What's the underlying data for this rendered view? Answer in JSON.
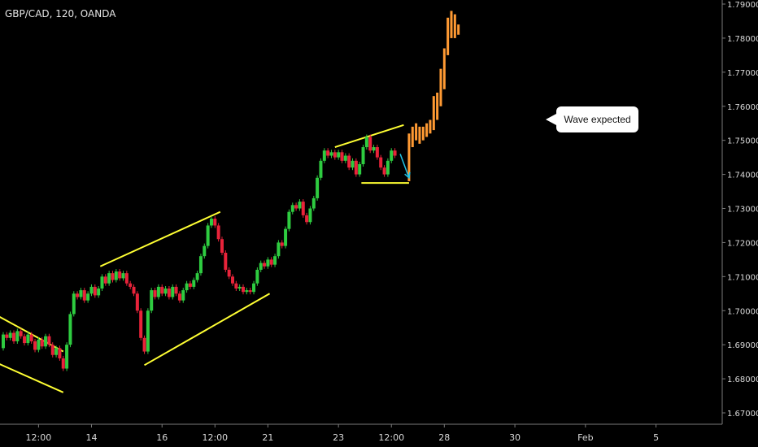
{
  "chart": {
    "symbol": "GBP/CAD, 120, OANDA"
  },
  "colors": {
    "background": "#000000",
    "up_candle": "#2ecc40",
    "down_candle": "#e8233a",
    "projection": "#ff9a33",
    "trendline": "#ffff33",
    "arrow": "#20c4e6",
    "axis_text": "#d9d9d9",
    "axis_line": "#7a7a7a",
    "callout_bg": "#ffffff"
  },
  "chart_data": {
    "type": "candlestick",
    "grid": false,
    "price_scale": "right",
    "ylim": [
      1.665,
      1.792
    ],
    "xlim": [
      0,
      78
    ],
    "x_ticks": [
      {
        "label": "12:00",
        "x": 4
      },
      {
        "label": "14",
        "x": 10
      },
      {
        "label": "16",
        "x": 18
      },
      {
        "label": "12:00",
        "x": 24
      },
      {
        "label": "21",
        "x": 30
      },
      {
        "label": "23",
        "x": 38
      },
      {
        "label": "12:00",
        "x": 44
      },
      {
        "label": "28",
        "x": 50
      },
      {
        "label": "30",
        "x": 58
      },
      {
        "label": "Feb",
        "x": 66
      },
      {
        "label": "5",
        "x": 74
      }
    ],
    "y_ticks": [
      "1.67000",
      "1.68000",
      "1.69000",
      "1.70000",
      "1.71000",
      "1.72000",
      "1.73000",
      "1.74000",
      "1.75000",
      "1.76000",
      "1.77000",
      "1.78000",
      "1.79000"
    ],
    "candles": [
      [
        0.0,
        1.689,
        1.693
      ],
      [
        0.4,
        1.693,
        1.692
      ],
      [
        0.8,
        1.692,
        1.6935
      ],
      [
        1.2,
        1.6935,
        1.691
      ],
      [
        1.6,
        1.691,
        1.694
      ],
      [
        2.0,
        1.694,
        1.6925
      ],
      [
        2.4,
        1.6925,
        1.6905
      ],
      [
        2.8,
        1.6905,
        1.693
      ],
      [
        3.2,
        1.693,
        1.691
      ],
      [
        3.6,
        1.691,
        1.6885
      ],
      [
        4.0,
        1.6885,
        1.6915
      ],
      [
        4.4,
        1.6915,
        1.6895
      ],
      [
        4.8,
        1.6895,
        1.6925
      ],
      [
        5.2,
        1.6925,
        1.69
      ],
      [
        5.6,
        1.69,
        1.687
      ],
      [
        6.0,
        1.687,
        1.689
      ],
      [
        6.4,
        1.689,
        1.686
      ],
      [
        6.8,
        1.686,
        1.683
      ],
      [
        7.2,
        1.683,
        1.69
      ],
      [
        7.6,
        1.69,
        1.699
      ],
      [
        8.0,
        1.699,
        1.705
      ],
      [
        8.4,
        1.705,
        1.704
      ],
      [
        8.8,
        1.704,
        1.706
      ],
      [
        9.2,
        1.706,
        1.703
      ],
      [
        9.6,
        1.703,
        1.705
      ],
      [
        10.0,
        1.705,
        1.707
      ],
      [
        10.4,
        1.707,
        1.7045
      ],
      [
        10.8,
        1.7045,
        1.7065
      ],
      [
        11.2,
        1.7065,
        1.71
      ],
      [
        11.6,
        1.71,
        1.708
      ],
      [
        12.0,
        1.708,
        1.711
      ],
      [
        12.4,
        1.711,
        1.709
      ],
      [
        12.8,
        1.709,
        1.7115
      ],
      [
        13.2,
        1.7115,
        1.7095
      ],
      [
        13.6,
        1.7095,
        1.711
      ],
      [
        14.0,
        1.711,
        1.708
      ],
      [
        14.4,
        1.708,
        1.707
      ],
      [
        14.8,
        1.707,
        1.705
      ],
      [
        15.2,
        1.705,
        1.7
      ],
      [
        15.6,
        1.7,
        1.692
      ],
      [
        16.0,
        1.692,
        1.688
      ],
      [
        16.4,
        1.688,
        1.7
      ],
      [
        16.8,
        1.7,
        1.706
      ],
      [
        17.2,
        1.706,
        1.704
      ],
      [
        17.6,
        1.704,
        1.707
      ],
      [
        18.0,
        1.707,
        1.705
      ],
      [
        18.4,
        1.705,
        1.7065
      ],
      [
        18.8,
        1.7065,
        1.704
      ],
      [
        19.2,
        1.704,
        1.707
      ],
      [
        19.6,
        1.707,
        1.705
      ],
      [
        20.0,
        1.705,
        1.703
      ],
      [
        20.4,
        1.703,
        1.706
      ],
      [
        20.8,
        1.706,
        1.708
      ],
      [
        21.2,
        1.708,
        1.707
      ],
      [
        21.6,
        1.707,
        1.709
      ],
      [
        22.0,
        1.709,
        1.711
      ],
      [
        22.4,
        1.711,
        1.716
      ],
      [
        22.8,
        1.716,
        1.719
      ],
      [
        23.2,
        1.719,
        1.725
      ],
      [
        23.6,
        1.725,
        1.727
      ],
      [
        24.0,
        1.727,
        1.725
      ],
      [
        24.4,
        1.725,
        1.721
      ],
      [
        24.8,
        1.721,
        1.717
      ],
      [
        25.2,
        1.717,
        1.712
      ],
      [
        25.6,
        1.712,
        1.71
      ],
      [
        26.0,
        1.71,
        1.708
      ],
      [
        26.4,
        1.708,
        1.7065
      ],
      [
        26.8,
        1.7065,
        1.707
      ],
      [
        27.2,
        1.707,
        1.7055
      ],
      [
        27.6,
        1.7055,
        1.706
      ],
      [
        28.0,
        1.706,
        1.7055
      ],
      [
        28.4,
        1.7055,
        1.708
      ],
      [
        28.8,
        1.708,
        1.712
      ],
      [
        29.2,
        1.712,
        1.714
      ],
      [
        29.6,
        1.714,
        1.713
      ],
      [
        30.0,
        1.713,
        1.715
      ],
      [
        30.4,
        1.715,
        1.7135
      ],
      [
        30.8,
        1.7135,
        1.716
      ],
      [
        31.2,
        1.716,
        1.72
      ],
      [
        31.6,
        1.72,
        1.719
      ],
      [
        32.0,
        1.719,
        1.724
      ],
      [
        32.4,
        1.724,
        1.729
      ],
      [
        32.8,
        1.729,
        1.731
      ],
      [
        33.2,
        1.731,
        1.73
      ],
      [
        33.6,
        1.73,
        1.732
      ],
      [
        34.0,
        1.732,
        1.728
      ],
      [
        34.4,
        1.728,
        1.726
      ],
      [
        34.8,
        1.726,
        1.73
      ],
      [
        35.2,
        1.73,
        1.733
      ],
      [
        35.6,
        1.733,
        1.739
      ],
      [
        36.0,
        1.739,
        1.744
      ],
      [
        36.4,
        1.744,
        1.747
      ],
      [
        36.8,
        1.747,
        1.7455
      ],
      [
        37.2,
        1.7455,
        1.7465
      ],
      [
        37.6,
        1.7465,
        1.745
      ],
      [
        38.0,
        1.745,
        1.7465
      ],
      [
        38.4,
        1.7465,
        1.744
      ],
      [
        38.8,
        1.744,
        1.7455
      ],
      [
        39.2,
        1.7455,
        1.742
      ],
      [
        39.6,
        1.742,
        1.744
      ],
      [
        40.0,
        1.744,
        1.74
      ],
      [
        40.4,
        1.74,
        1.743
      ],
      [
        40.8,
        1.743,
        1.748
      ],
      [
        41.2,
        1.748,
        1.751
      ],
      [
        41.6,
        1.751,
        1.747
      ],
      [
        42.0,
        1.747,
        1.748
      ],
      [
        42.4,
        1.748,
        1.745
      ],
      [
        42.8,
        1.745,
        1.742
      ],
      [
        43.2,
        1.742,
        1.74
      ],
      [
        43.6,
        1.74,
        1.744
      ],
      [
        44.0,
        1.744,
        1.747
      ],
      [
        44.4,
        1.747,
        1.7455
      ]
    ],
    "projection": [
      [
        46.0,
        1.738,
        1.752
      ],
      [
        46.4,
        1.748,
        1.754
      ],
      [
        46.8,
        1.75,
        1.755
      ],
      [
        47.2,
        1.749,
        1.754
      ],
      [
        47.6,
        1.75,
        1.754
      ],
      [
        48.0,
        1.751,
        1.755
      ],
      [
        48.4,
        1.752,
        1.756
      ],
      [
        48.8,
        1.753,
        1.763
      ],
      [
        49.2,
        1.756,
        1.764
      ],
      [
        49.6,
        1.76,
        1.771
      ],
      [
        50.0,
        1.765,
        1.777
      ],
      [
        50.4,
        1.775,
        1.786
      ],
      [
        50.8,
        1.78,
        1.788
      ],
      [
        51.2,
        1.78,
        1.787
      ],
      [
        51.6,
        1.781,
        1.784
      ]
    ],
    "trendlines": [
      [
        [
          -1.0,
          1.699
        ],
        [
          6.8,
          1.688
        ]
      ],
      [
        [
          -1.0,
          1.685
        ],
        [
          6.8,
          1.676
        ]
      ],
      [
        [
          11.0,
          1.713
        ],
        [
          24.6,
          1.729
        ]
      ],
      [
        [
          16.0,
          1.684
        ],
        [
          30.2,
          1.705
        ]
      ],
      [
        [
          37.6,
          1.748
        ],
        [
          45.4,
          1.7545
        ]
      ],
      [
        [
          40.6,
          1.7375
        ],
        [
          46.0,
          1.7375
        ]
      ]
    ],
    "arrow": [
      [
        45.0,
        1.746
      ],
      [
        46.0,
        1.739
      ]
    ],
    "annotations": [
      "Wave expected"
    ]
  }
}
